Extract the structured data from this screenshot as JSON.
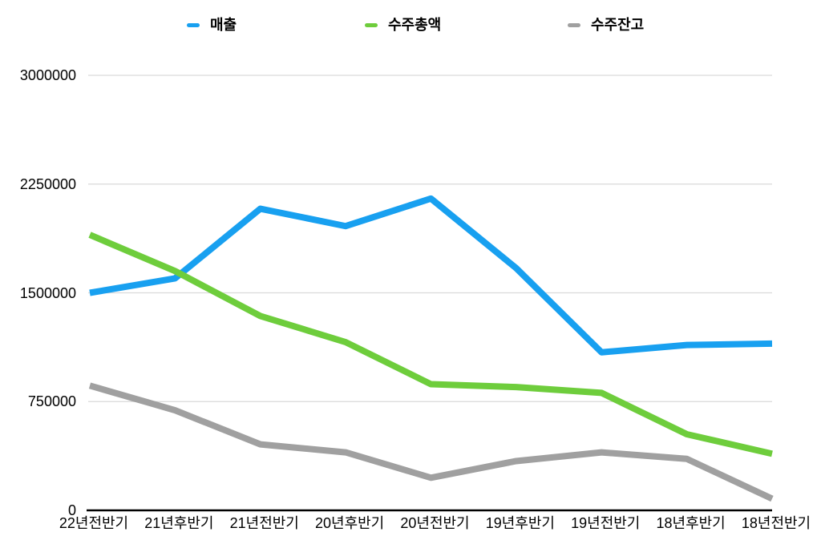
{
  "chart_data": {
    "type": "line",
    "title": "",
    "categories": [
      "22년전반기",
      "21년후반기",
      "21년전반기",
      "20년후반기",
      "20년전반기",
      "19년후반기",
      "19년전반기",
      "18년후반기",
      "18년전반기"
    ],
    "series": [
      {
        "name": "매출",
        "color": "#18A0F0",
        "values": [
          1500000,
          1600000,
          2080000,
          1960000,
          2150000,
          1670000,
          1090000,
          1140000,
          1150000
        ]
      },
      {
        "name": "수주총액",
        "color": "#6ECD3C",
        "values": [
          1900000,
          1650000,
          1340000,
          1160000,
          870000,
          850000,
          810000,
          525000,
          390000
        ]
      },
      {
        "name": "수주잔고",
        "color": "#A0A0A0",
        "values": [
          860000,
          690000,
          455000,
          400000,
          225000,
          340000,
          400000,
          355000,
          80000
        ]
      }
    ],
    "yticks": [
      0,
      750000,
      1500000,
      2250000,
      3000000
    ],
    "ytick_labels": [
      "0",
      "750000",
      "1500000",
      "2250000",
      "3000000"
    ],
    "ylim": [
      0,
      3000000
    ],
    "grid": true,
    "legend_position": "top"
  },
  "colors": {
    "background": "#FFFFFF",
    "grid": "#D9D9D9",
    "axis": "#000000",
    "text": "#000000"
  }
}
